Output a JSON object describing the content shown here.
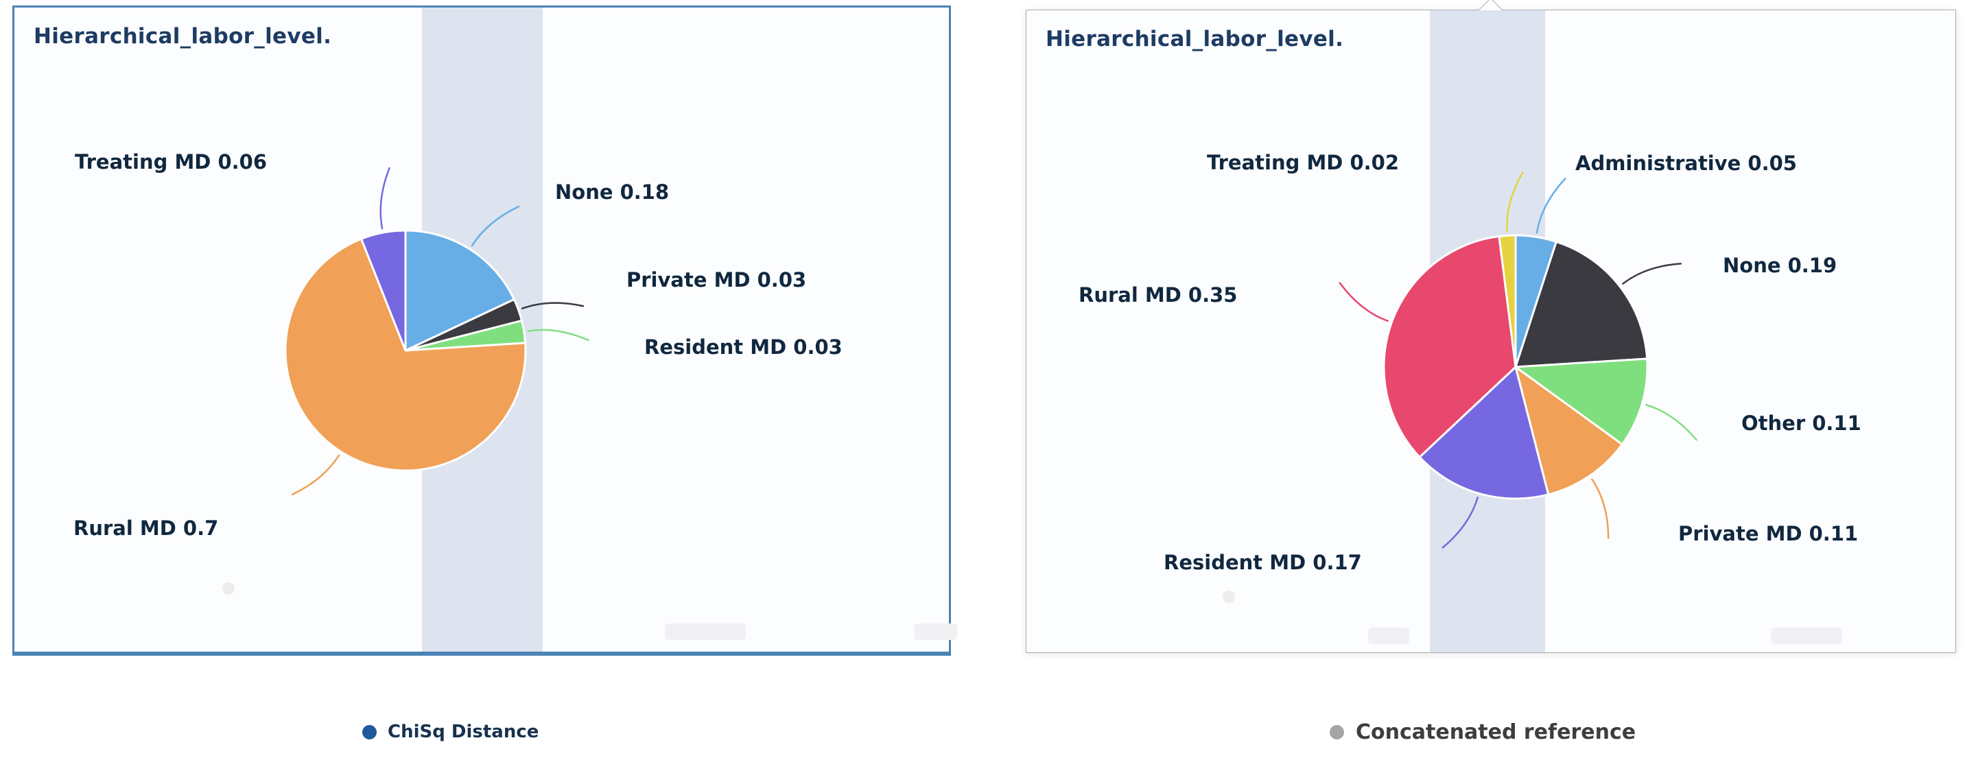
{
  "chart_data": [
    {
      "type": "pie",
      "title": "Hierarchical_labor_level.",
      "legend": {
        "label": "ChiSq Distance",
        "color": "#1e5a9d",
        "position": "bottom"
      },
      "start_angle_deg": -90,
      "direction": "clockwise",
      "slices": [
        {
          "label": "None",
          "value": 0.18,
          "color": "#68aee6",
          "display": "None 0.18"
        },
        {
          "label": "Private MD",
          "value": 0.03,
          "color": "#3a3a40",
          "display": "Private MD 0.03"
        },
        {
          "label": "Resident MD",
          "value": 0.03,
          "color": "#7fdf7f",
          "display": "Resident MD 0.03"
        },
        {
          "label": "Rural MD",
          "value": 0.7,
          "color": "#f0a157",
          "display": "Rural MD 0.7"
        },
        {
          "label": "Treating MD",
          "value": 0.06,
          "color": "#7668e0",
          "display": "Treating MD 0.06"
        }
      ]
    },
    {
      "type": "pie",
      "title": "Hierarchical_labor_level.",
      "legend": {
        "label": "Concatenated reference",
        "color": "#a5a5a5",
        "position": "bottom"
      },
      "start_angle_deg": -90,
      "direction": "clockwise",
      "slices": [
        {
          "label": "Administrative",
          "value": 0.05,
          "color": "#68aee6",
          "display": "Administrative 0.05"
        },
        {
          "label": "None",
          "value": 0.19,
          "color": "#3a3a40",
          "display": "None 0.19"
        },
        {
          "label": "Other",
          "value": 0.11,
          "color": "#7fdf7f",
          "display": "Other 0.11"
        },
        {
          "label": "Private MD",
          "value": 0.11,
          "color": "#f0a157",
          "display": "Private MD 0.11"
        },
        {
          "label": "Resident MD",
          "value": 0.17,
          "color": "#7668e0",
          "display": "Resident MD 0.17"
        },
        {
          "label": "Rural MD",
          "value": 0.35,
          "color": "#e8486d",
          "display": "Rural MD 0.35"
        },
        {
          "label": "Treating MD",
          "value": 0.02,
          "color": "#e6d23e",
          "display": "Treating MD 0.02"
        }
      ]
    }
  ]
}
